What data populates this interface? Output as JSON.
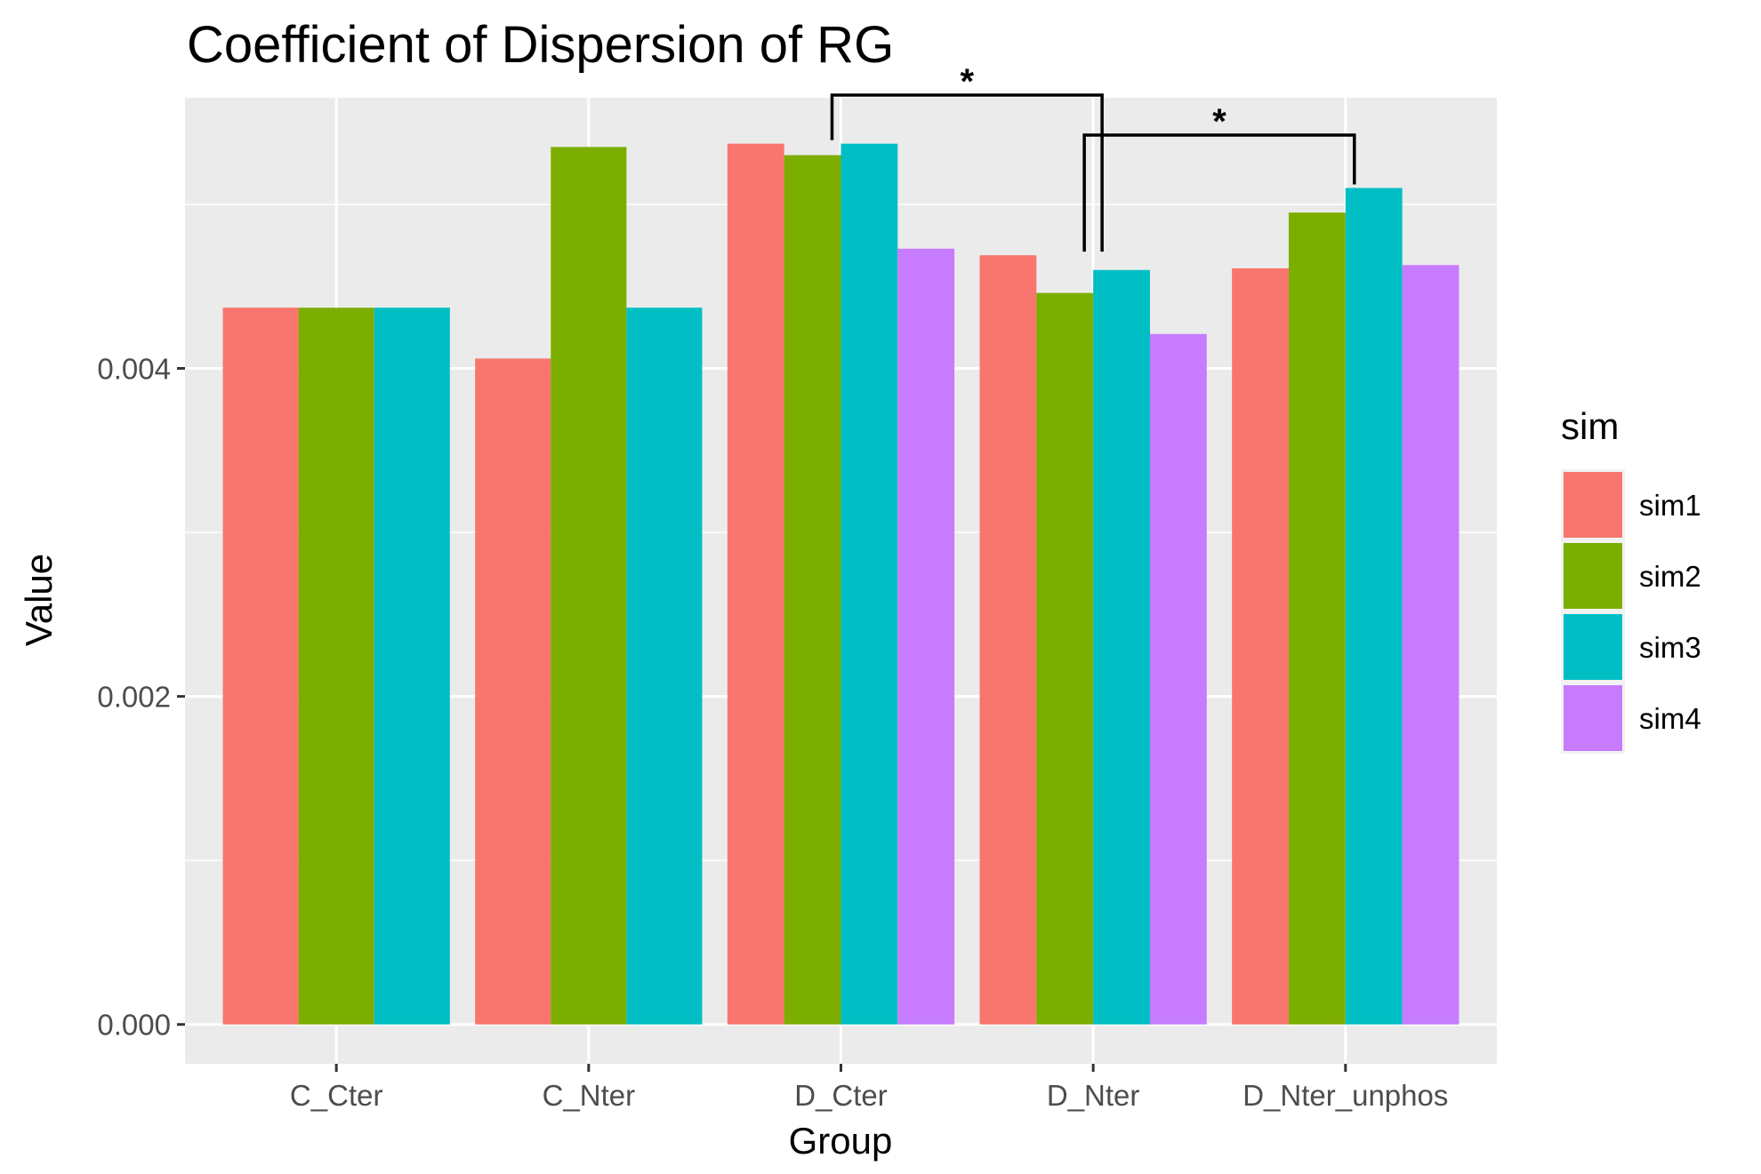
{
  "chart_data": {
    "type": "bar",
    "title": "Coefficient of Dispersion of RG",
    "xlabel": "Group",
    "ylabel": "Value",
    "ylim": [
      -0.00024,
      0.00565
    ],
    "yticks": [
      0.0,
      0.002,
      0.004
    ],
    "ytick_labels": [
      "0.000",
      "0.002",
      "0.004"
    ],
    "grid": true,
    "legend_position": "right",
    "legend_title": "sim",
    "categories": [
      "C_Cter",
      "C_Nter",
      "D_Cter",
      "D_Nter",
      "D_Nter_unphos"
    ],
    "series": [
      {
        "name": "sim1",
        "color": "#F8766D",
        "values": [
          0.00437,
          0.00406,
          0.00537,
          0.00469,
          0.00461
        ]
      },
      {
        "name": "sim2",
        "color": "#7CAE00",
        "values": [
          0.00437,
          0.00535,
          0.0053,
          0.00446,
          0.00495
        ]
      },
      {
        "name": "sim3",
        "color": "#00BFC4",
        "values": [
          0.00437,
          0.00437,
          0.00537,
          0.0046,
          0.0051
        ]
      },
      {
        "name": "sim4",
        "color": "#C77CFF",
        "values": [
          null,
          null,
          0.00473,
          0.00421,
          0.00463
        ]
      }
    ],
    "annotations": [
      {
        "text": "*",
        "from": "D_Cter",
        "to": "D_Nter"
      },
      {
        "text": "*",
        "from": "D_Nter",
        "to": "D_Nter_unphos"
      }
    ]
  }
}
